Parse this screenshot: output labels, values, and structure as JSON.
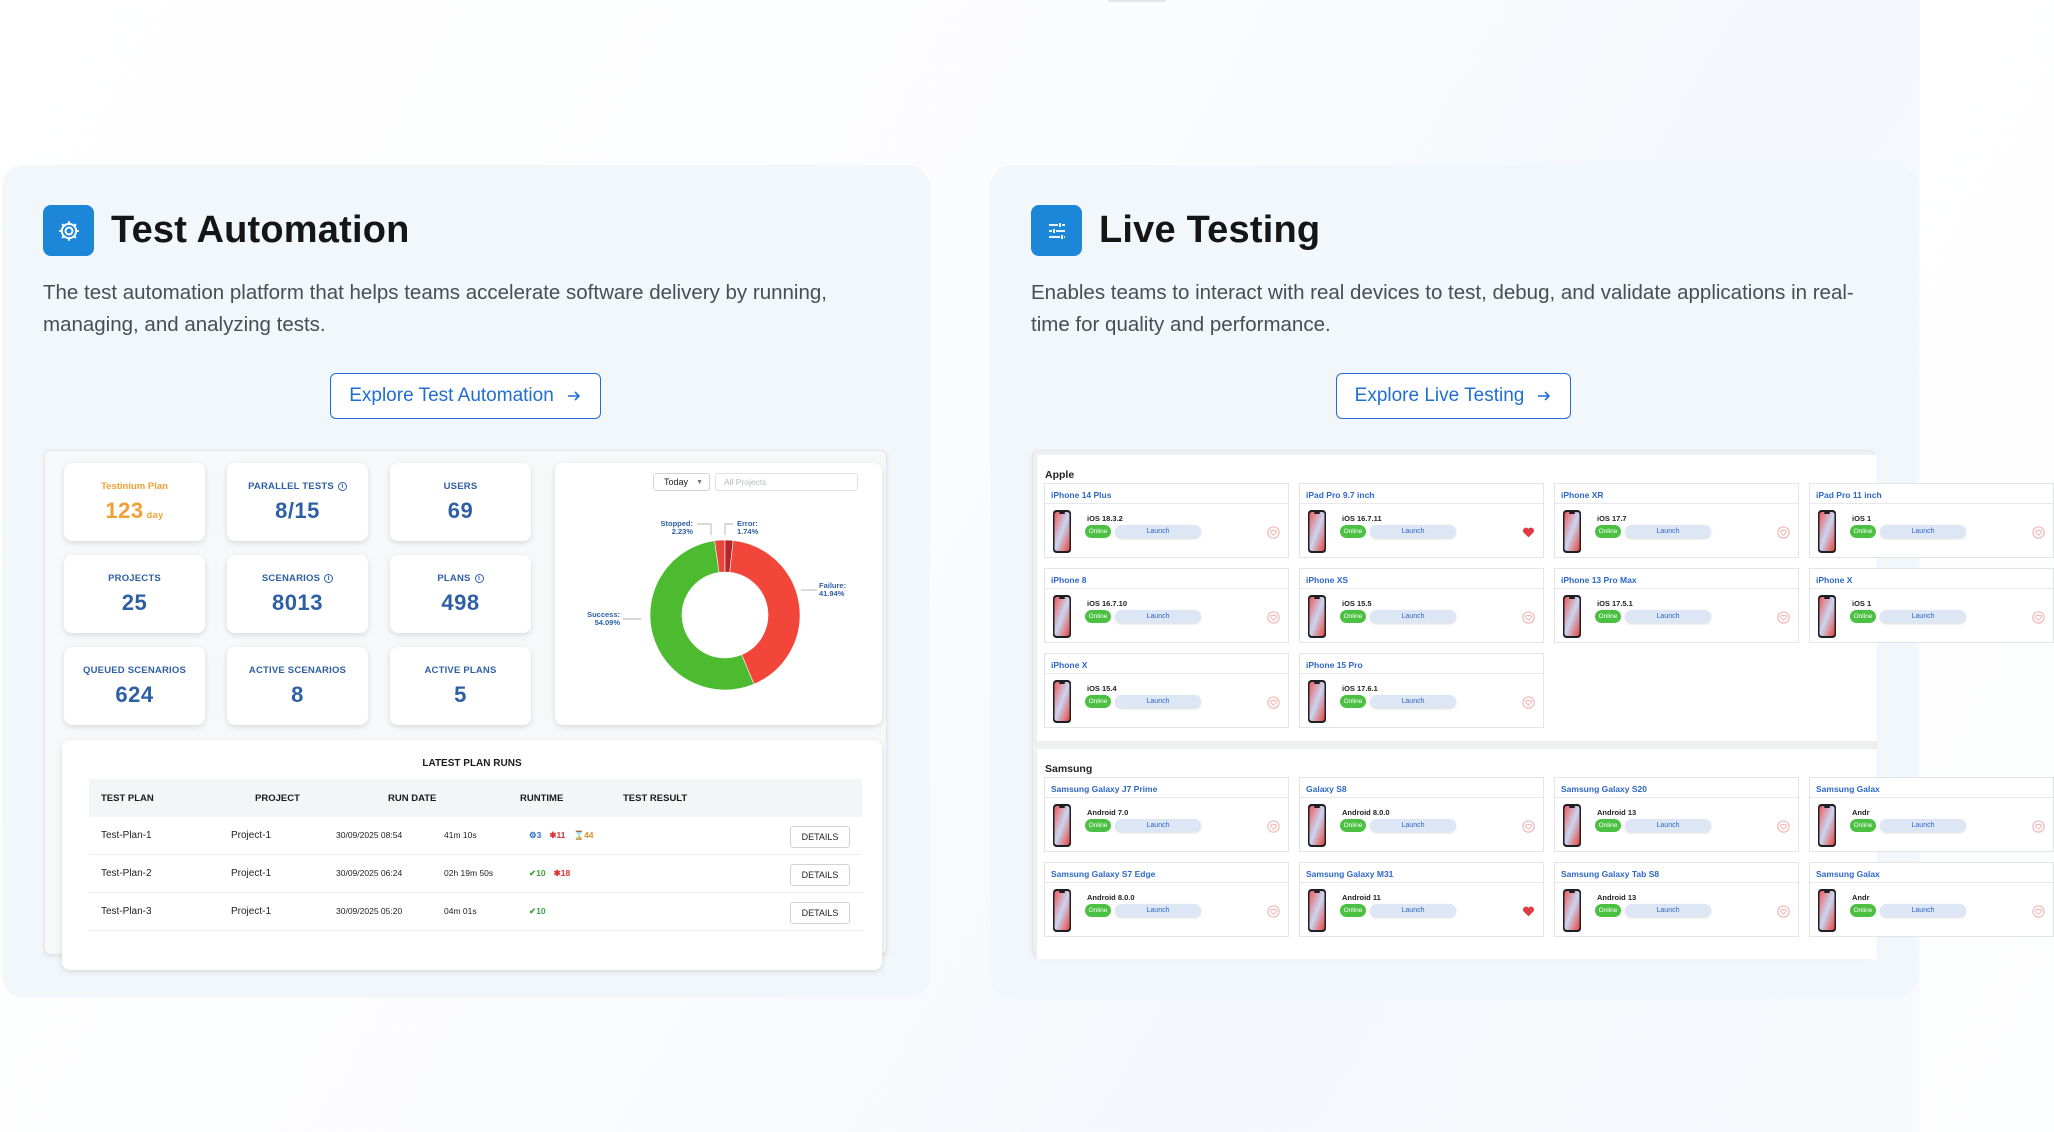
{
  "test_automation": {
    "title": "Test Automation",
    "icon": "gear-cog-icon",
    "description": "The test automation platform that helps teams accelerate software delivery by running, managing, and analyzing tests.",
    "cta": "Explore Test Automation",
    "stats": [
      {
        "label": "Testinium Plan",
        "value": "123",
        "unit": "day",
        "accent": "#f0a032"
      },
      {
        "label": "PARALLEL TESTS",
        "value": "8/15",
        "info": true
      },
      {
        "label": "USERS",
        "value": "69"
      },
      {
        "label": "PROJECTS",
        "value": "25"
      },
      {
        "label": "SCENARIOS",
        "value": "8013",
        "info": true
      },
      {
        "label": "PLANS",
        "value": "498",
        "info": true
      },
      {
        "label": "QUEUED SCENARIOS",
        "value": "624"
      },
      {
        "label": "ACTIVE SCENARIOS",
        "value": "8"
      },
      {
        "label": "ACTIVE PLANS",
        "value": "5"
      }
    ],
    "donut": {
      "date_filter": "Today",
      "project_placeholder": "All Projects",
      "slices": [
        {
          "name": "Success",
          "percent": 54.09,
          "color": "#4cbb2f",
          "label": "Success:",
          "value_label": "54.09%"
        },
        {
          "name": "Failure",
          "percent": 41.94,
          "color": "#f2463a",
          "label": "Failure:",
          "value_label": "41.94%"
        },
        {
          "name": "Stopped",
          "percent": 2.23,
          "color": "#e8463c",
          "label": "Stopped:",
          "value_label": "2.23%"
        },
        {
          "name": "Error",
          "percent": 1.74,
          "color": "#b8242c",
          "label": "Error:",
          "value_label": "1.74%"
        }
      ]
    },
    "runs": {
      "title": "LATEST PLAN RUNS",
      "headers": [
        "TEST PLAN",
        "PROJECT",
        "RUN DATE",
        "RUNTIME",
        "TEST RESULT"
      ],
      "details_label": "DETAILS",
      "rows": [
        {
          "plan": "Test-Plan-1",
          "project": "Project-1",
          "date": "30/09/2025 08:54",
          "runtime": "41m 10s",
          "r1": "3",
          "r2": "11",
          "r3": "44"
        },
        {
          "plan": "Test-Plan-2",
          "project": "Project-1",
          "date": "30/09/2025 06:24",
          "runtime": "02h 19m 50s",
          "r1": "10",
          "r2": "18"
        },
        {
          "plan": "Test-Plan-3",
          "project": "Project-1",
          "date": "30/09/2025 05:20",
          "runtime": "04m 01s",
          "r1": "10"
        }
      ]
    }
  },
  "live_testing": {
    "title": "Live Testing",
    "icon": "sliders-icon",
    "description": "Enables teams to interact with real devices to test, debug, and validate applications in real-time for quality and performance.",
    "cta": "Explore Live Testing",
    "online_label": "Online",
    "launch_label": "Launch",
    "groups": [
      {
        "name": "Apple",
        "devices": [
          {
            "name": "iPhone 14 Plus",
            "os": "iOS 18.3.2",
            "fav": false
          },
          {
            "name": "iPad Pro 9.7 inch",
            "os": "iOS 16.7.11",
            "fav": true
          },
          {
            "name": "iPhone XR",
            "os": "iOS 17.7",
            "fav": false
          },
          {
            "name": "iPad Pro 11 inch",
            "os": "iOS 1",
            "fav": false
          },
          {
            "name": "iPhone 8",
            "os": "iOS 16.7.10",
            "fav": false
          },
          {
            "name": "iPhone XS",
            "os": "iOS 15.5",
            "fav": false
          },
          {
            "name": "iPhone 13 Pro Max",
            "os": "iOS 17.5.1",
            "fav": false
          },
          {
            "name": "iPhone X",
            "os": "iOS 1",
            "fav": false
          },
          {
            "name": "iPhone X",
            "os": "iOS 15.4",
            "fav": false
          },
          {
            "name": "iPhone 15 Pro",
            "os": "iOS 17.6.1",
            "fav": false
          }
        ]
      },
      {
        "name": "Samsung",
        "devices": [
          {
            "name": "Samsung Galaxy J7 Prime",
            "os": "Android 7.0",
            "fav": false
          },
          {
            "name": "Galaxy S8",
            "os": "Android 8.0.0",
            "fav": false
          },
          {
            "name": "Samsung Galaxy S20",
            "os": "Android 13",
            "fav": false
          },
          {
            "name": "Samsung Galax",
            "os": "Andr",
            "fav": false
          },
          {
            "name": "Samsung Galaxy S7 Edge",
            "os": "Android 8.0.0",
            "fav": false
          },
          {
            "name": "Samsung Galaxy M31",
            "os": "Android 11",
            "fav": true
          },
          {
            "name": "Samsung Galaxy Tab S8",
            "os": "Android 13",
            "fav": false
          },
          {
            "name": "Samsung Galax",
            "os": "Andr",
            "fav": false
          }
        ]
      }
    ]
  },
  "colors": {
    "brand_blue": "#1c86d9",
    "link_blue": "#1f6fd1",
    "panel_bg": "#f2f7fc",
    "success": "#4cbb2f",
    "failure": "#f2463a"
  }
}
